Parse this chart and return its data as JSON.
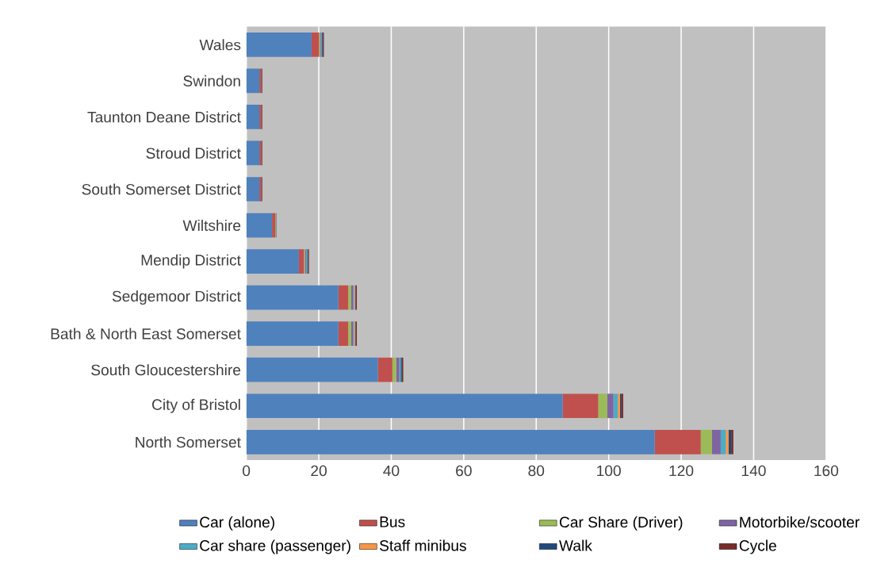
{
  "chart_data": {
    "type": "bar",
    "orientation": "horizontal",
    "stacked": true,
    "categories": [
      "Wales",
      "Swindon",
      "Taunton Deane District",
      "Stroud District",
      "South Somerset District",
      "Wiltshire",
      "Mendip District",
      "Sedgemoor District",
      "Bath & North East Somerset",
      "South Gloucestershire",
      "City of Bristol",
      "North Somerset"
    ],
    "series": [
      {
        "name": "Car (alone)",
        "color": "#4f81bd",
        "values": [
          18.0,
          3.6,
          3.6,
          3.6,
          3.6,
          7.1,
          14.5,
          25.4,
          25.4,
          36.3,
          87.3,
          112.7
        ]
      },
      {
        "name": "Bus",
        "color": "#c0504d",
        "values": [
          2.1,
          0.5,
          0.5,
          0.5,
          0.5,
          0.9,
          1.4,
          2.7,
          2.7,
          4.0,
          9.8,
          12.7
        ]
      },
      {
        "name": "Car Share (Driver)",
        "color": "#9bbb59",
        "values": [
          0.3,
          0,
          0,
          0,
          0,
          0.2,
          0.3,
          0.8,
          0.8,
          1.1,
          2.5,
          3.1
        ]
      },
      {
        "name": "Motorbike/scooter",
        "color": "#8064a2",
        "values": [
          0.2,
          0,
          0,
          0,
          0,
          0,
          0.3,
          0.6,
          0.6,
          0.8,
          1.7,
          2.4
        ]
      },
      {
        "name": "Car share (passenger)",
        "color": "#4bacc6",
        "values": [
          0.3,
          0,
          0,
          0,
          0,
          0,
          0.3,
          0.2,
          0.2,
          0.4,
          1.2,
          1.4
        ]
      },
      {
        "name": "Staff minibus",
        "color": "#f79646",
        "values": [
          null,
          0,
          0,
          0,
          0,
          0,
          0,
          0.3,
          0.3,
          null,
          0.6,
          0.8
        ]
      },
      {
        "name": "Walk",
        "color": "#1f497d",
        "values": [
          0.2,
          0.1,
          0.1,
          0.1,
          0.1,
          0.1,
          0.2,
          0.2,
          0.2,
          0.3,
          0.3,
          0.7
        ]
      },
      {
        "name": "Cycle",
        "color": "#772c2a",
        "values": [
          0.3,
          0.2,
          0.2,
          0.2,
          0.2,
          null,
          0.3,
          0.3,
          0.3,
          0.4,
          0.6,
          0.6
        ]
      }
    ],
    "xlim": [
      0,
      160
    ],
    "xticks": [
      0,
      20,
      40,
      60,
      80,
      100,
      120,
      140,
      160
    ],
    "grid": "x",
    "legend": "bottom"
  }
}
